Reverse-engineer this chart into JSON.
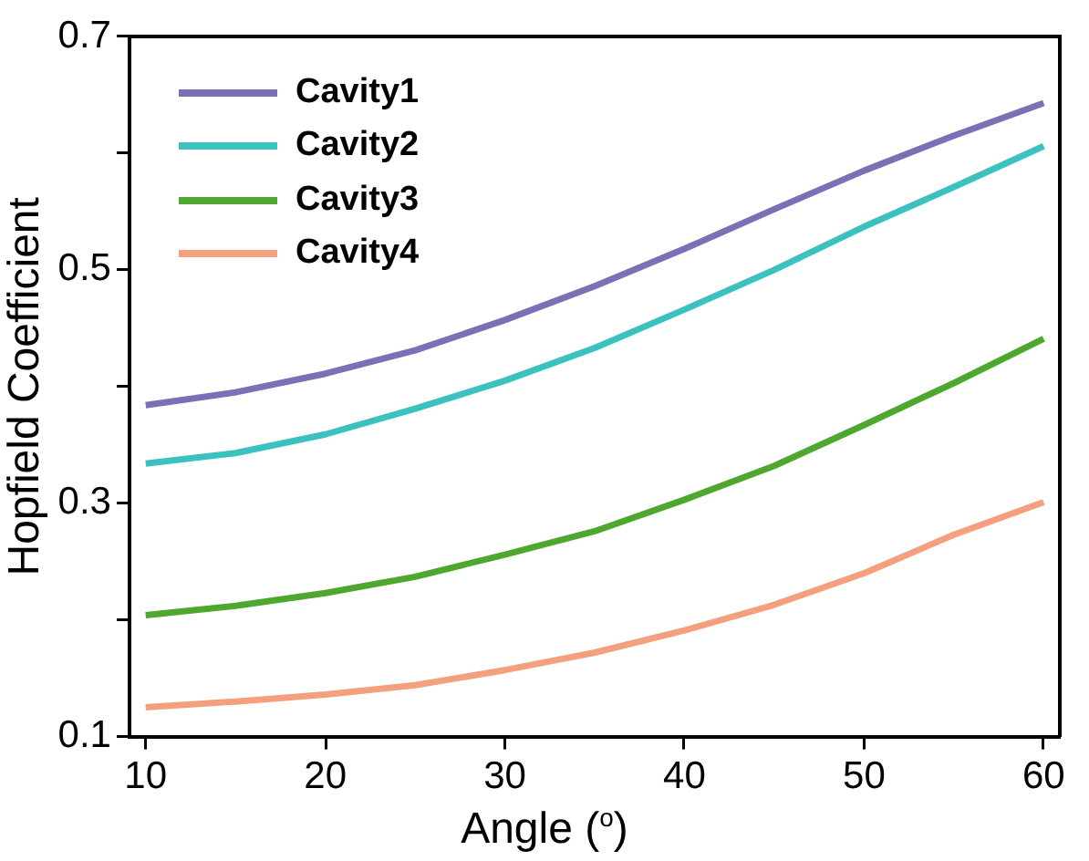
{
  "chart_data": {
    "type": "line",
    "xlabel": "Angle ($^{o}$)",
    "ylabel": "Hopfield Coefficient",
    "x": [
      10,
      15,
      20,
      25,
      30,
      35,
      40,
      45,
      50,
      55,
      60
    ],
    "series": [
      {
        "name": "Cavity1",
        "color": "#7b6fb5",
        "values": [
          0.384,
          0.395,
          0.411,
          0.431,
          0.457,
          0.486,
          0.518,
          0.552,
          0.585,
          0.615,
          0.643
        ]
      },
      {
        "name": "Cavity2",
        "color": "#3cc1c1",
        "values": [
          0.334,
          0.343,
          0.359,
          0.381,
          0.405,
          0.433,
          0.466,
          0.5,
          0.537,
          0.571,
          0.606
        ]
      },
      {
        "name": "Cavity3",
        "color": "#4ea72e",
        "values": [
          0.204,
          0.212,
          0.223,
          0.237,
          0.256,
          0.276,
          0.303,
          0.332,
          0.367,
          0.403,
          0.441
        ]
      },
      {
        "name": "Cavity4",
        "color": "#f4a07f",
        "values": [
          0.125,
          0.13,
          0.136,
          0.144,
          0.157,
          0.172,
          0.191,
          0.213,
          0.24,
          0.273,
          0.301
        ]
      }
    ],
    "xlim": [
      9.1,
      60.9
    ],
    "xticks": [
      10,
      20,
      30,
      40,
      50,
      60
    ],
    "ylim": [
      0.1,
      0.7
    ],
    "yticks": [
      0.1,
      {
        "value": 0.2,
        "label": null
      },
      0.3,
      {
        "value": 0.4,
        "label": null
      },
      0.5,
      {
        "value": 0.6,
        "label": null
      },
      0.7
    ],
    "grid": false,
    "legend": "top left",
    "marker": "none",
    "line_style": "solid"
  }
}
